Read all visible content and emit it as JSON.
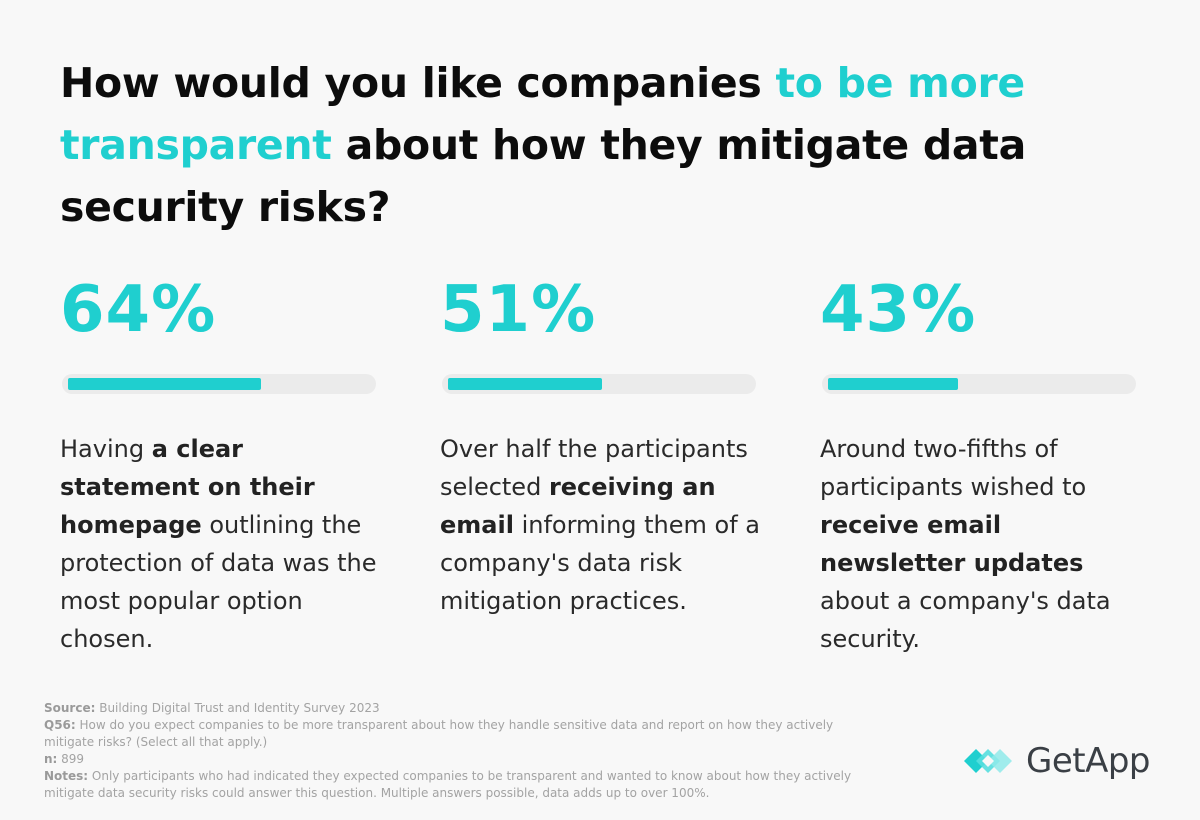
{
  "title": {
    "part1": "How would you like companies ",
    "highlight": "to be more transparent",
    "part2": " about how they mitigate data security risks?"
  },
  "chart_data": {
    "type": "bar",
    "title": "How would you like companies to be more transparent about how they mitigate data security risks?",
    "categories": [
      "A clear statement on their homepage",
      "Receiving an email",
      "Receive email newsletter updates"
    ],
    "values": [
      64,
      51,
      43
    ],
    "unit": "%",
    "ylim": [
      0,
      100
    ]
  },
  "stats": [
    {
      "pct_label": "64%",
      "value": 64,
      "desc_pre": "Having ",
      "desc_bold": "a clear statement on their homepage",
      "desc_post": " outlining the protection of data was the most popular option chosen."
    },
    {
      "pct_label": "51%",
      "value": 51,
      "desc_pre": "Over half the participants selected ",
      "desc_bold": "receiving an email",
      "desc_post": " informing them of a company's data risk mitigation practices."
    },
    {
      "pct_label": "43%",
      "value": 43,
      "desc_pre": "Around two-fifths of participants wished to ",
      "desc_bold": "receive email newsletter updates",
      "desc_post": " about a company's data security."
    }
  ],
  "footer": {
    "source_label": "Source:",
    "source_text": " Building Digital Trust and Identity Survey 2023",
    "q_label": "Q56:",
    "q_text": " How do you expect companies to be more transparent about how they handle sensitive data and report on how they actively mitigate risks? (Select all that apply.)",
    "n_label": "n:",
    "n_text": " 899",
    "notes_label": "Notes:",
    "notes_text": " Only participants who had indicated they expected companies to be transparent and wanted to know about how they actively mitigate data security risks could answer this question. Multiple answers possible, data adds up to over 100%."
  },
  "logo": {
    "text": "GetApp"
  },
  "colors": {
    "accent": "#1fcfcf",
    "track": "#ebebeb",
    "logo_dark": "#3a3f45"
  }
}
